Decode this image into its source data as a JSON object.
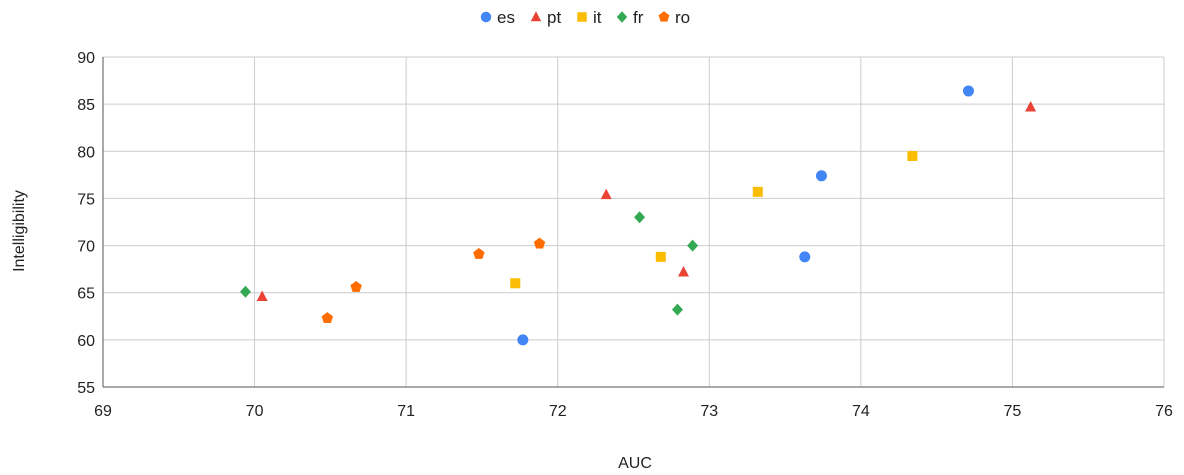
{
  "chart_data": {
    "type": "scatter",
    "xlabel": "AUC",
    "ylabel": "Intelligibility",
    "xlim": [
      69,
      76
    ],
    "ylim": [
      55,
      90
    ],
    "xticks": [
      69,
      70,
      71,
      72,
      73,
      74,
      75,
      76
    ],
    "yticks": [
      55,
      60,
      65,
      70,
      75,
      80,
      85,
      90
    ],
    "grid": true,
    "legend_position": "top-center",
    "series": [
      {
        "name": "es",
        "color": "#4285F4",
        "marker": "circle",
        "points": [
          [
            71.77,
            60.0
          ],
          [
            73.63,
            68.8
          ],
          [
            73.74,
            77.4
          ],
          [
            74.71,
            86.4
          ]
        ]
      },
      {
        "name": "pt",
        "color": "#EA4335",
        "marker": "triangle",
        "points": [
          [
            70.05,
            64.6
          ],
          [
            72.32,
            75.4
          ],
          [
            72.83,
            67.2
          ],
          [
            75.12,
            84.7
          ]
        ]
      },
      {
        "name": "it",
        "color": "#FBBC04",
        "marker": "square",
        "points": [
          [
            71.72,
            66.0
          ],
          [
            72.68,
            68.8
          ],
          [
            73.32,
            75.7
          ],
          [
            74.34,
            79.5
          ]
        ]
      },
      {
        "name": "fr",
        "color": "#34A853",
        "marker": "diamond",
        "points": [
          [
            69.94,
            65.1
          ],
          [
            72.54,
            73.0
          ],
          [
            72.79,
            63.2
          ],
          [
            72.89,
            70.0
          ]
        ]
      },
      {
        "name": "ro",
        "color": "#FF6D01",
        "marker": "pentagon",
        "points": [
          [
            70.48,
            62.3
          ],
          [
            70.67,
            65.6
          ],
          [
            71.48,
            69.1
          ],
          [
            71.88,
            70.2
          ]
        ]
      }
    ]
  }
}
